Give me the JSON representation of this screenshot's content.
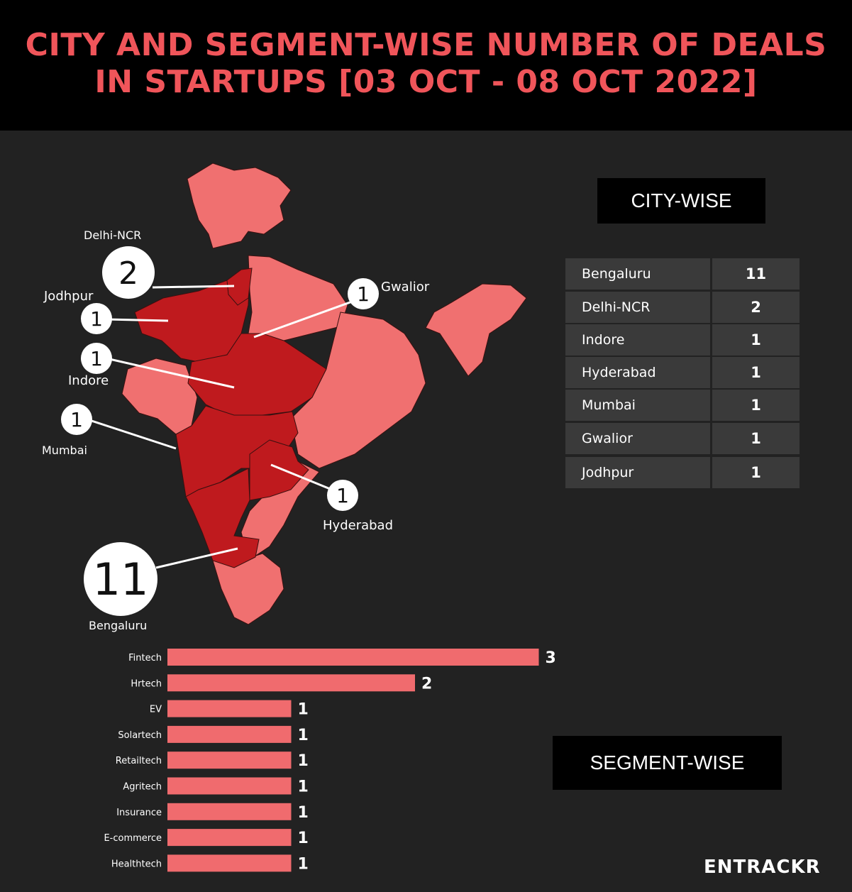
{
  "title_line1": "CITY AND SEGMENT-WISE NUMBER OF DEALS",
  "title_line2": "IN STARTUPS [03 OCT - 08 OCT 2022]",
  "city_wise_label": "CITY-WISE",
  "segment_wise_label": "SEGMENT-WISE",
  "logo": "ENTRACKR",
  "colors": {
    "accent": "#f0555a",
    "bar": "#f06b6e",
    "highlight_region": "#bf1a1e",
    "map_base": "#f07070",
    "panel": "#3a3a3a"
  },
  "city_table": [
    {
      "city": "Bengaluru",
      "deals": "11"
    },
    {
      "city": "Delhi-NCR",
      "deals": "2"
    },
    {
      "city": "Indore",
      "deals": "1"
    },
    {
      "city": "Hyderabad",
      "deals": "1"
    },
    {
      "city": "Mumbai",
      "deals": "1"
    },
    {
      "city": "Gwalior",
      "deals": "1"
    },
    {
      "city": "Jodhpur",
      "deals": "1"
    }
  ],
  "map_callouts": [
    {
      "city": "Delhi-NCR",
      "value": "2"
    },
    {
      "city": "Jodhpur",
      "value": "1"
    },
    {
      "city": "Gwalior",
      "value": "1"
    },
    {
      "city": "Indore",
      "value": "1"
    },
    {
      "city": "Mumbai",
      "value": "1"
    },
    {
      "city": "Hyderabad",
      "value": "1"
    },
    {
      "city": "Bengaluru",
      "value": "11"
    }
  ],
  "chart_data": {
    "type": "bar",
    "orientation": "horizontal",
    "categories": [
      "Fintech",
      "Hrtech",
      "EV",
      "Solartech",
      "Retailtech",
      "Agritech",
      "Insurance",
      "E-commerce",
      "Healthtech"
    ],
    "values": [
      3,
      2,
      1,
      1,
      1,
      1,
      1,
      1,
      1
    ],
    "title": "SEGMENT-WISE",
    "data_labels": true
  }
}
